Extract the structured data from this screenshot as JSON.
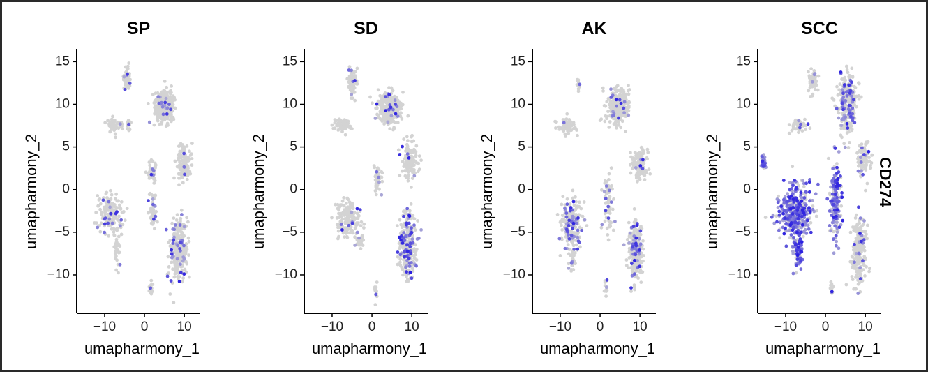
{
  "feature": "CD274",
  "colors": {
    "low": "#d3d3d3",
    "high": "#2b1fe0",
    "axis": "#000000"
  },
  "chart_data": [
    {
      "type": "scatter",
      "title": "SP",
      "xlabel": "umapharmony_1",
      "ylabel": "umapharmony_2",
      "xlim": [
        -17,
        14
      ],
      "ylim": [
        -14.5,
        16.5
      ],
      "xticks": [
        -10,
        0,
        10
      ],
      "xtick_labels": [
        "−10",
        "0",
        "10"
      ],
      "yticks": [
        15,
        10,
        5,
        0,
        -5,
        -10
      ],
      "ytick_labels": [
        "15",
        "10",
        "5",
        "0",
        "−5",
        "−10"
      ],
      "color_scale": "CD274 expression (grey = low, blue = high)",
      "clusters": [
        {
          "x": -4.5,
          "y": 13.0,
          "sx": 0.6,
          "sy": 1.0,
          "n": 70,
          "frac": 0.03
        },
        {
          "x": 4.8,
          "y": 9.8,
          "sx": 1.7,
          "sy": 1.3,
          "n": 320,
          "frac": 0.04
        },
        {
          "x": -7.5,
          "y": 7.5,
          "sx": 1.5,
          "sy": 0.6,
          "n": 60,
          "frac": 0.02
        },
        {
          "x": -4.0,
          "y": 7.5,
          "sx": 0.3,
          "sy": 0.6,
          "n": 15,
          "frac": 0.05
        },
        {
          "x": 10.0,
          "y": 3.0,
          "sx": 1.3,
          "sy": 1.5,
          "n": 130,
          "frac": 0.04
        },
        {
          "x": 2.0,
          "y": 2.0,
          "sx": 0.8,
          "sy": 1.0,
          "n": 40,
          "frac": 0.05
        },
        {
          "x": 2.0,
          "y": -2.5,
          "sx": 0.6,
          "sy": 1.5,
          "n": 45,
          "frac": 0.1
        },
        {
          "x": -8.5,
          "y": -3.0,
          "sx": 2.2,
          "sy": 1.6,
          "n": 160,
          "frac": 0.08
        },
        {
          "x": -7.0,
          "y": -7.0,
          "sx": 0.6,
          "sy": 1.5,
          "n": 30,
          "frac": 0.05
        },
        {
          "x": 8.5,
          "y": -7.0,
          "sx": 1.5,
          "sy": 2.5,
          "n": 280,
          "frac": 0.15
        },
        {
          "x": 1.5,
          "y": -11.5,
          "sx": 0.3,
          "sy": 0.8,
          "n": 14,
          "frac": 0.1
        }
      ]
    },
    {
      "type": "scatter",
      "title": "SD",
      "xlabel": "umapharmony_1",
      "ylabel": "umapharmony_2",
      "xlim": [
        -17,
        14
      ],
      "ylim": [
        -14.5,
        16.5
      ],
      "xticks": [
        -10,
        0,
        10
      ],
      "xtick_labels": [
        "−10",
        "0",
        "10"
      ],
      "yticks": [
        15,
        10,
        5,
        0,
        -5,
        -10
      ],
      "ytick_labels": [
        "15",
        "10",
        "5",
        "0",
        "−5",
        "−10"
      ],
      "color_scale": "CD274 expression (grey = low, blue = high)",
      "clusters": [
        {
          "x": -5.0,
          "y": 12.5,
          "sx": 0.7,
          "sy": 1.2,
          "n": 70,
          "frac": 0.04
        },
        {
          "x": 4.5,
          "y": 9.5,
          "sx": 2.0,
          "sy": 1.3,
          "n": 340,
          "frac": 0.05
        },
        {
          "x": -7.5,
          "y": 7.5,
          "sx": 1.5,
          "sy": 0.6,
          "n": 60,
          "frac": 0.02
        },
        {
          "x": 9.5,
          "y": 3.5,
          "sx": 1.4,
          "sy": 1.5,
          "n": 130,
          "frac": 0.04
        },
        {
          "x": 1.5,
          "y": 1.0,
          "sx": 0.7,
          "sy": 1.5,
          "n": 45,
          "frac": 0.1
        },
        {
          "x": -6.0,
          "y": -3.5,
          "sx": 2.2,
          "sy": 1.6,
          "n": 160,
          "frac": 0.1
        },
        {
          "x": -3.0,
          "y": -6.0,
          "sx": 0.7,
          "sy": 0.5,
          "n": 20,
          "frac": 0.1
        },
        {
          "x": 9.0,
          "y": -6.5,
          "sx": 1.5,
          "sy": 2.7,
          "n": 300,
          "frac": 0.28
        },
        {
          "x": 1.0,
          "y": -11.5,
          "sx": 0.3,
          "sy": 0.8,
          "n": 14,
          "frac": 0.1
        }
      ]
    },
    {
      "type": "scatter",
      "title": "AK",
      "xlabel": "umapharmony_1",
      "ylabel": "umapharmony_2",
      "xlim": [
        -17,
        14
      ],
      "ylim": [
        -14.5,
        16.5
      ],
      "xticks": [
        -10,
        0,
        10
      ],
      "xtick_labels": [
        "−10",
        "0",
        "10"
      ],
      "yticks": [
        15,
        10,
        5,
        0,
        -5,
        -10
      ],
      "ytick_labels": [
        "15",
        "10",
        "5",
        "0",
        "−5",
        "−10"
      ],
      "color_scale": "CD274 expression (grey = low, blue = high)",
      "clusters": [
        {
          "x": -5.5,
          "y": 12.5,
          "sx": 0.4,
          "sy": 0.6,
          "n": 12,
          "frac": 0.1
        },
        {
          "x": 4.5,
          "y": 9.8,
          "sx": 2.0,
          "sy": 1.4,
          "n": 340,
          "frac": 0.05
        },
        {
          "x": -8.5,
          "y": 7.5,
          "sx": 1.6,
          "sy": 0.7,
          "n": 70,
          "frac": 0.03
        },
        {
          "x": 10.0,
          "y": 3.0,
          "sx": 1.3,
          "sy": 1.5,
          "n": 120,
          "frac": 0.04
        },
        {
          "x": 2.0,
          "y": -1.5,
          "sx": 0.8,
          "sy": 2.5,
          "n": 70,
          "frac": 0.2
        },
        {
          "x": -7.0,
          "y": -4.0,
          "sx": 2.0,
          "sy": 2.0,
          "n": 200,
          "frac": 0.2
        },
        {
          "x": -7.0,
          "y": -8.0,
          "sx": 0.6,
          "sy": 1.2,
          "n": 30,
          "frac": 0.15
        },
        {
          "x": 9.0,
          "y": -7.0,
          "sx": 1.4,
          "sy": 2.6,
          "n": 260,
          "frac": 0.15
        },
        {
          "x": 1.5,
          "y": -11.5,
          "sx": 0.3,
          "sy": 0.8,
          "n": 14,
          "frac": 0.1
        }
      ]
    },
    {
      "type": "scatter",
      "title": "SCC",
      "xlabel": "umapharmony_1",
      "ylabel": "umapharmony_2",
      "xlim": [
        -17,
        14
      ],
      "ylim": [
        -14.5,
        16.5
      ],
      "xticks": [
        -10,
        0,
        10
      ],
      "xtick_labels": [
        "−10",
        "0",
        "10"
      ],
      "yticks": [
        15,
        10,
        5,
        0,
        -5,
        -10
      ],
      "ytick_labels": [
        "15",
        "10",
        "5",
        "0",
        "−5",
        "−10"
      ],
      "color_scale": "CD274 expression (grey = low, blue = high)",
      "clusters": [
        {
          "x": -3.0,
          "y": 12.5,
          "sx": 0.8,
          "sy": 1.2,
          "n": 60,
          "frac": 0.05
        },
        {
          "x": 5.5,
          "y": 10.0,
          "sx": 1.7,
          "sy": 2.5,
          "n": 260,
          "frac": 0.25
        },
        {
          "x": -6.5,
          "y": 7.5,
          "sx": 1.6,
          "sy": 0.6,
          "n": 50,
          "frac": 0.1
        },
        {
          "x": -15.5,
          "y": 3.2,
          "sx": 0.5,
          "sy": 0.5,
          "n": 30,
          "frac": 0.9
        },
        {
          "x": 9.5,
          "y": 3.5,
          "sx": 1.3,
          "sy": 1.4,
          "n": 100,
          "frac": 0.1
        },
        {
          "x": 2.5,
          "y": -1.5,
          "sx": 1.0,
          "sy": 2.8,
          "n": 180,
          "frac": 0.65
        },
        {
          "x": -7.5,
          "y": -2.5,
          "sx": 3.0,
          "sy": 2.2,
          "n": 380,
          "frac": 0.7
        },
        {
          "x": -7.0,
          "y": -7.0,
          "sx": 0.9,
          "sy": 1.6,
          "n": 80,
          "frac": 0.6
        },
        {
          "x": 8.5,
          "y": -7.0,
          "sx": 1.4,
          "sy": 2.7,
          "n": 250,
          "frac": 0.1
        },
        {
          "x": 1.5,
          "y": -11.5,
          "sx": 0.3,
          "sy": 0.8,
          "n": 14,
          "frac": 0.2
        }
      ]
    }
  ]
}
